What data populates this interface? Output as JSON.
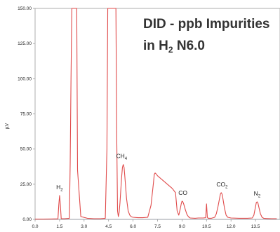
{
  "chart_data": {
    "type": "line",
    "title_line1": "DID - ppb Impurities",
    "title_line2_prefix": "in H",
    "title_line2_sub": "2",
    "title_line2_suffix": " N6.0",
    "ylabel": "µV",
    "xlim": [
      0.0,
      15.0
    ],
    "ylim": [
      0.0,
      150.0
    ],
    "x_ticks": [
      "0.0",
      "1.5",
      "3.0",
      "4.5",
      "6.0",
      "7.5",
      "9.0",
      "10.5",
      "12.0",
      "13.5"
    ],
    "y_ticks": [
      "0.00",
      "25.00",
      "50.00",
      "75.00",
      "100.00",
      "125.00",
      "150.00"
    ],
    "series": [
      {
        "color": "#e04b4b",
        "x": [
          0.0,
          0.5,
          1.0,
          1.4,
          1.45,
          1.5,
          1.55,
          1.6,
          1.8,
          2.1,
          2.15,
          2.2,
          2.25,
          2.3,
          2.4,
          2.45,
          2.5,
          2.55,
          2.6,
          2.8,
          3.2,
          3.6,
          4.0,
          4.3,
          4.4,
          4.45,
          4.5,
          4.55,
          4.6,
          4.8,
          4.9,
          4.95,
          5.0,
          5.05,
          5.1,
          5.15,
          5.2,
          5.3,
          5.35,
          5.4,
          5.45,
          5.5,
          5.6,
          5.7,
          5.8,
          5.9,
          6.0,
          6.3,
          6.6,
          6.9,
          7.1,
          7.25,
          7.3,
          7.35,
          7.4,
          7.5,
          7.6,
          7.8,
          8.0,
          8.2,
          8.4,
          8.6,
          8.7,
          8.8,
          8.9,
          8.95,
          9.0,
          9.05,
          9.1,
          9.2,
          9.3,
          9.4,
          9.5,
          9.8,
          10.0,
          10.3,
          10.45,
          10.5,
          10.55,
          10.6,
          10.8,
          11.0,
          11.1,
          11.2,
          11.3,
          11.35,
          11.4,
          11.45,
          11.5,
          11.6,
          11.7,
          11.8,
          12.0,
          12.5,
          13.0,
          13.3,
          13.4,
          13.5,
          13.55,
          13.6,
          13.65,
          13.7,
          13.8,
          13.9,
          14.0,
          14.2,
          14.5,
          14.8
        ],
        "y": [
          0.2,
          0.2,
          0.3,
          0.4,
          10.0,
          17.0,
          10.0,
          0.5,
          0.5,
          0.8,
          40.0,
          100.0,
          150.0,
          150.0,
          150.0,
          150.0,
          150.0,
          150.0,
          35.0,
          2.0,
          0.8,
          0.5,
          0.5,
          0.8,
          50.0,
          150.0,
          150.0,
          150.0,
          150.0,
          150.0,
          150.0,
          150.0,
          60.0,
          6.0,
          2.0,
          5.0,
          12.0,
          30.0,
          37.0,
          39.0,
          37.0,
          30.0,
          15.0,
          6.0,
          3.0,
          1.8,
          1.5,
          1.2,
          1.2,
          1.5,
          10.0,
          26.0,
          32.0,
          33.0,
          32.5,
          31.0,
          30.0,
          28.0,
          26.0,
          24.0,
          22.0,
          19.0,
          6.0,
          3.0,
          8.0,
          11.0,
          13.0,
          12.5,
          11.0,
          7.0,
          3.5,
          1.8,
          1.0,
          0.8,
          1.0,
          1.0,
          1.2,
          11.0,
          1.5,
          0.8,
          0.8,
          1.5,
          4.0,
          9.0,
          15.0,
          18.0,
          19.0,
          18.0,
          15.0,
          8.0,
          3.0,
          1.5,
          1.0,
          0.8,
          0.8,
          1.0,
          3.0,
          9.0,
          12.0,
          12.5,
          11.5,
          9.0,
          4.0,
          1.5,
          0.8,
          0.6,
          0.5,
          0.5
        ]
      }
    ],
    "baseline_y": 0.0,
    "peak_labels": [
      {
        "base": "H",
        "sub": "2",
        "x": 1.5,
        "y": 17.0
      },
      {
        "base": "CH",
        "sub": "4",
        "x": 5.3,
        "y": 39.0
      },
      {
        "base": "CO",
        "sub": "",
        "x": 9.05,
        "y": 13.0
      },
      {
        "base": "CO",
        "sub": "2",
        "x": 11.45,
        "y": 19.0
      },
      {
        "base": "N",
        "sub": "2",
        "x": 13.6,
        "y": 12.5
      }
    ],
    "grid": false
  }
}
